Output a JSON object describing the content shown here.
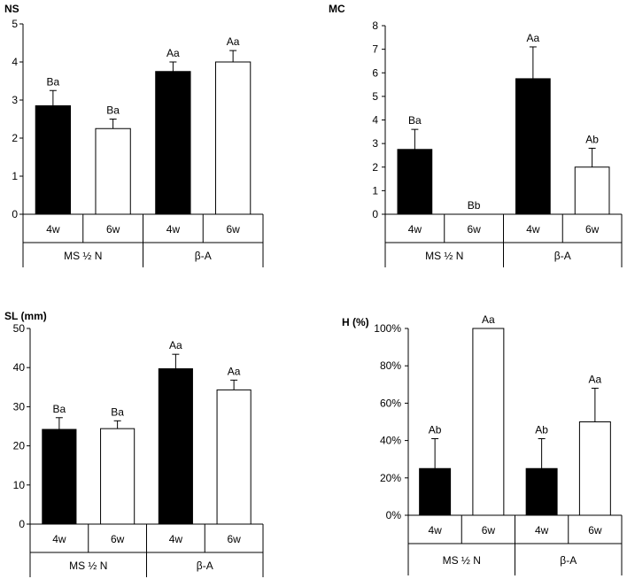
{
  "colors": {
    "filled_bar": "#000000",
    "open_bar": "#ffffff",
    "axis": "#000000"
  },
  "chart_data": [
    {
      "type": "bar",
      "title": "NS",
      "ylim": [
        0,
        5
      ],
      "yticks": [
        0,
        1,
        2,
        3,
        4,
        5
      ],
      "tick_labels": [
        "0",
        "1",
        "2",
        "3",
        "4",
        "5"
      ],
      "categories": [
        "4w",
        "6w",
        "4w",
        "6w"
      ],
      "groups": [
        "MS ½ N",
        "β-A"
      ],
      "values": [
        2.85,
        2.25,
        3.75,
        4.0
      ],
      "errors": [
        0.4,
        0.25,
        0.25,
        0.3
      ],
      "fills": [
        "black",
        "white",
        "black",
        "white"
      ],
      "labels": [
        "Ba",
        "Ba",
        "Aa",
        "Aa"
      ]
    },
    {
      "type": "bar",
      "title": "MC",
      "ylim": [
        0,
        8
      ],
      "yticks": [
        0,
        1,
        2,
        3,
        4,
        5,
        6,
        7,
        8
      ],
      "tick_labels": [
        "0",
        "1",
        "2",
        "3",
        "4",
        "5",
        "6",
        "7",
        "8"
      ],
      "categories": [
        "4w",
        "6w",
        "4w",
        "6w"
      ],
      "groups": [
        "MS ½ N",
        "β-A"
      ],
      "values": [
        2.75,
        0,
        5.75,
        2.0
      ],
      "errors": [
        0.85,
        0,
        1.35,
        0.8
      ],
      "fills": [
        "black",
        "white",
        "black",
        "white"
      ],
      "labels": [
        "Ba",
        "Bb",
        "Aa",
        "Ab"
      ]
    },
    {
      "type": "bar",
      "title": "SL (mm)",
      "ylim": [
        0,
        50
      ],
      "yticks": [
        0,
        10,
        20,
        30,
        40,
        50
      ],
      "tick_labels": [
        "0",
        "10",
        "20",
        "30",
        "40",
        "50"
      ],
      "categories": [
        "4w",
        "6w",
        "4w",
        "6w"
      ],
      "groups": [
        "MS ½ N",
        "β-A"
      ],
      "values": [
        24.2,
        24.4,
        39.7,
        34.3
      ],
      "errors": [
        3.0,
        2.0,
        3.7,
        2.5
      ],
      "fills": [
        "black",
        "white",
        "black",
        "white"
      ],
      "labels": [
        "Ba",
        "Ba",
        "Aa",
        "Aa"
      ]
    },
    {
      "type": "bar",
      "title": "H (%)",
      "ylim": [
        0,
        100
      ],
      "yticks": [
        0,
        20,
        40,
        60,
        80,
        100
      ],
      "tick_labels": [
        "0%",
        "20%",
        "40%",
        "60%",
        "80%",
        "100%"
      ],
      "categories": [
        "4w",
        "6w",
        "4w",
        "6w"
      ],
      "groups": [
        "MS ½ N",
        "β-A"
      ],
      "values": [
        25,
        100,
        25,
        50
      ],
      "errors": [
        16,
        0,
        16,
        18
      ],
      "fills": [
        "black",
        "white",
        "black",
        "white"
      ],
      "labels": [
        "Ab",
        "Aa",
        "Ab",
        "Aa"
      ]
    }
  ]
}
